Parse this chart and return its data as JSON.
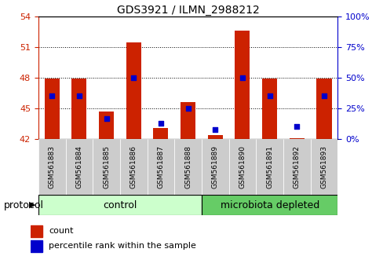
{
  "title": "GDS3921 / ILMN_2988212",
  "samples": [
    "GSM561883",
    "GSM561884",
    "GSM561885",
    "GSM561886",
    "GSM561887",
    "GSM561888",
    "GSM561889",
    "GSM561890",
    "GSM561891",
    "GSM561892",
    "GSM561893"
  ],
  "count_values": [
    47.9,
    47.9,
    44.7,
    51.5,
    43.1,
    45.6,
    42.4,
    52.6,
    47.9,
    42.1,
    47.9
  ],
  "percentile_values": [
    35,
    35,
    17,
    50,
    13,
    25,
    8,
    50,
    35,
    10,
    35
  ],
  "ylim_left": [
    42,
    54
  ],
  "ylim_right": [
    0,
    100
  ],
  "yticks_left": [
    42,
    45,
    48,
    51,
    54
  ],
  "yticks_right": [
    0,
    25,
    50,
    75,
    100
  ],
  "bar_color": "#cc2200",
  "dot_color": "#0000cc",
  "baseline": 42,
  "groups": [
    {
      "label": "control",
      "start": 0,
      "end": 5,
      "color": "#ccffcc"
    },
    {
      "label": "microbiota depleted",
      "start": 6,
      "end": 10,
      "color": "#66cc66"
    }
  ],
  "group_label": "protocol",
  "left_tick_color": "#cc2200",
  "right_tick_color": "#0000cc",
  "bar_width": 0.55,
  "sample_cell_color": "#cccccc",
  "title_fontsize": 10,
  "axis_fontsize": 8,
  "label_fontsize": 9,
  "legend_fontsize": 8
}
